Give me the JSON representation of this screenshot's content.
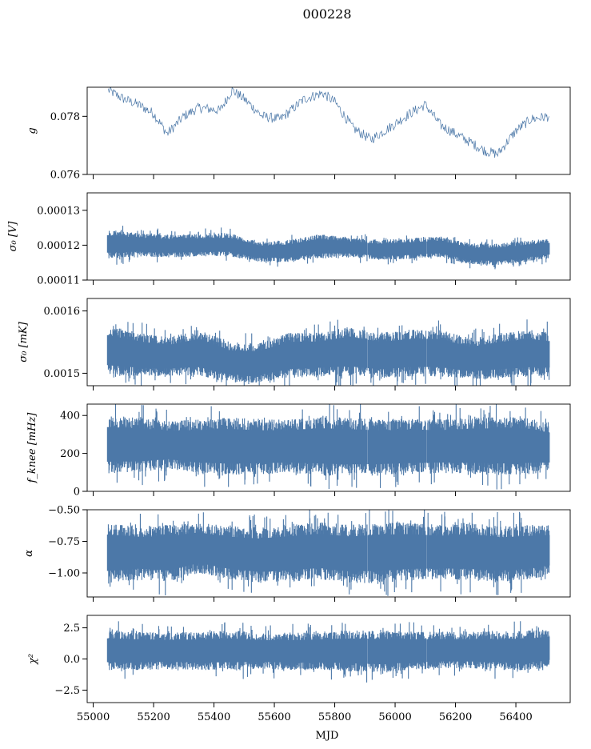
{
  "figure": {
    "title": "000228",
    "xlabel": "MJD"
  },
  "colors": {
    "series": "#4c78a8",
    "axes": "#000000"
  },
  "chart_data": [
    {
      "type": "line",
      "panel": "g",
      "ylabel": "g",
      "xlim": [
        54980,
        56580
      ],
      "ylim": [
        0.076,
        0.079
      ],
      "yticks": [
        0.076,
        0.078
      ],
      "ytick_labels": [
        "0.076",
        "0.078"
      ],
      "xticks": [
        55000,
        55200,
        55400,
        55600,
        55800,
        56000,
        56200,
        56400
      ],
      "show_xtick_labels": false,
      "render": "line",
      "x": [
        55050,
        55100,
        55150,
        55200,
        55245,
        55300,
        55350,
        55420,
        55460,
        55500,
        55560,
        55620,
        55700,
        55760,
        55800,
        55860,
        55920,
        55980,
        56050,
        56100,
        56150,
        56200,
        56250,
        56300,
        56340,
        56400,
        56450,
        56510
      ],
      "y": [
        0.0789,
        0.0786,
        0.0784,
        0.0781,
        0.0774,
        0.078,
        0.0783,
        0.0782,
        0.0789,
        0.0786,
        0.078,
        0.0779,
        0.0786,
        0.0788,
        0.0785,
        0.0776,
        0.0772,
        0.0776,
        0.0781,
        0.0784,
        0.0777,
        0.0774,
        0.0771,
        0.0768,
        0.0767,
        0.0775,
        0.0779,
        0.078
      ]
    },
    {
      "type": "area",
      "panel": "sigma0_volt",
      "ylabel": "σ₀ [V]",
      "xlim": [
        54980,
        56580
      ],
      "ylim": [
        0.00011,
        0.000135
      ],
      "yticks": [
        0.00011,
        0.00012,
        0.00013
      ],
      "ytick_labels": [
        "0.00011",
        "0.00012",
        "0.00013"
      ],
      "xticks": [
        55000,
        55200,
        55400,
        55600,
        55800,
        56000,
        56200,
        56400
      ],
      "show_xtick_labels": false,
      "render": "band",
      "gaps": [
        55910,
        56105
      ],
      "x": [
        55050,
        55150,
        55250,
        55350,
        55450,
        55550,
        55650,
        55750,
        55850,
        55950,
        56050,
        56150,
        56250,
        56350,
        56450,
        56510
      ],
      "y_upper": [
        0.0001245,
        0.0001235,
        0.000123,
        0.0001232,
        0.0001235,
        0.000121,
        0.0001215,
        0.0001232,
        0.0001222,
        0.0001215,
        0.000122,
        0.0001225,
        0.0001205,
        0.0001205,
        0.0001215,
        0.0001218
      ],
      "y_lower": [
        0.0001162,
        0.0001168,
        0.0001165,
        0.0001168,
        0.0001168,
        0.0001152,
        0.0001152,
        0.0001162,
        0.0001165,
        0.0001158,
        0.000116,
        0.0001165,
        0.0001145,
        0.0001142,
        0.0001155,
        0.0001162
      ]
    },
    {
      "type": "area",
      "panel": "sigma0_mk",
      "ylabel": "σ₀ [mK]",
      "xlim": [
        54980,
        56580
      ],
      "ylim": [
        0.00148,
        0.00162
      ],
      "yticks": [
        0.0015,
        0.0016
      ],
      "ytick_labels": [
        "0.0015",
        "0.0016"
      ],
      "xticks": [
        55000,
        55200,
        55400,
        55600,
        55800,
        56000,
        56200,
        56400
      ],
      "show_xtick_labels": false,
      "render": "band",
      "gaps": [
        55910,
        56105
      ],
      "x": [
        55050,
        55150,
        55250,
        55350,
        55450,
        55550,
        55650,
        55750,
        55850,
        55950,
        56050,
        56150,
        56250,
        56350,
        56450,
        56510
      ],
      "y_upper": [
        0.001577,
        0.001565,
        0.001558,
        0.00157,
        0.00155,
        0.001548,
        0.001565,
        0.001565,
        0.001575,
        0.001565,
        0.00157,
        0.00157,
        0.001555,
        0.001565,
        0.00157,
        0.001565
      ],
      "y_lower": [
        0.001497,
        0.001495,
        0.001495,
        0.001495,
        0.001485,
        0.001485,
        0.001492,
        0.001495,
        0.001495,
        0.001492,
        0.001495,
        0.001495,
        0.00149,
        0.001492,
        0.001495,
        0.001495
      ]
    },
    {
      "type": "area",
      "panel": "fknee",
      "ylabel": "f_knee [mHz]",
      "xlim": [
        54980,
        56580
      ],
      "ylim": [
        0,
        460
      ],
      "yticks": [
        0,
        200,
        400
      ],
      "ytick_labels": [
        "0",
        "200",
        "400"
      ],
      "xticks": [
        55000,
        55200,
        55400,
        55600,
        55800,
        56000,
        56200,
        56400
      ],
      "show_xtick_labels": false,
      "render": "band",
      "gaps": [
        55910,
        56105
      ],
      "x": [
        55050,
        55150,
        55250,
        55350,
        55450,
        55550,
        55650,
        55750,
        55850,
        55950,
        56050,
        56150,
        56250,
        56350,
        56450,
        56510
      ],
      "y_upper": [
        400,
        390,
        370,
        380,
        390,
        380,
        380,
        395,
        390,
        380,
        385,
        380,
        390,
        395,
        390,
        360
      ],
      "y_lower": [
        95,
        100,
        120,
        95,
        85,
        90,
        95,
        85,
        80,
        85,
        90,
        95,
        90,
        85,
        90,
        100
      ]
    },
    {
      "type": "area",
      "panel": "alpha",
      "ylabel": "α",
      "xlim": [
        54980,
        56580
      ],
      "ylim": [
        -1.19,
        -0.5
      ],
      "yticks": [
        -1.0,
        -0.75,
        -0.5
      ],
      "ytick_labels": [
        "−1.00",
        "−0.75",
        "−0.50"
      ],
      "xticks": [
        55000,
        55200,
        55400,
        55600,
        55800,
        56000,
        56200,
        56400
      ],
      "show_xtick_labels": false,
      "render": "band",
      "gaps": [
        55910,
        56105
      ],
      "x": [
        55050,
        55150,
        55250,
        55350,
        55450,
        55550,
        55650,
        55750,
        55850,
        55950,
        56050,
        56150,
        56250,
        56350,
        56450,
        56510
      ],
      "y_upper": [
        -0.6,
        -0.63,
        -0.62,
        -0.6,
        -0.63,
        -0.64,
        -0.62,
        -0.6,
        -0.62,
        -0.6,
        -0.6,
        -0.62,
        -0.6,
        -0.63,
        -0.62,
        -0.62
      ],
      "y_lower": [
        -1.08,
        -1.05,
        -1.07,
        -1.0,
        -1.05,
        -1.08,
        -1.07,
        -1.05,
        -1.08,
        -1.08,
        -1.06,
        -1.05,
        -1.06,
        -1.07,
        -1.05,
        -1.02
      ]
    },
    {
      "type": "area",
      "panel": "chi2",
      "ylabel": "χ²",
      "xlim": [
        54980,
        56580
      ],
      "ylim": [
        -3.5,
        3.5
      ],
      "yticks": [
        -2.5,
        0.0,
        2.5
      ],
      "ytick_labels": [
        "−2.5",
        "0.0",
        "2.5"
      ],
      "xticks": [
        55000,
        55200,
        55400,
        55600,
        55800,
        56000,
        56200,
        56400
      ],
      "xtick_labels": [
        "55000",
        "55200",
        "55400",
        "55600",
        "55800",
        "56000",
        "56200",
        "56400"
      ],
      "show_xtick_labels": true,
      "render": "band",
      "gaps": [
        55910,
        56105
      ],
      "x": [
        55050,
        55150,
        55250,
        55350,
        55450,
        55550,
        55650,
        55750,
        55850,
        55950,
        56050,
        56150,
        56250,
        56350,
        56450,
        56510
      ],
      "y_upper": [
        2.3,
        2.2,
        2.1,
        2.2,
        2.3,
        2.1,
        2.1,
        2.2,
        2.3,
        2.3,
        2.2,
        2.2,
        2.2,
        2.2,
        2.3,
        2.4
      ],
      "y_lower": [
        -0.9,
        -0.9,
        -0.8,
        -0.9,
        -0.9,
        -0.8,
        -0.9,
        -0.9,
        -1.0,
        -1.1,
        -0.9,
        -0.8,
        -0.8,
        -0.9,
        -0.9,
        -0.7
      ]
    }
  ]
}
